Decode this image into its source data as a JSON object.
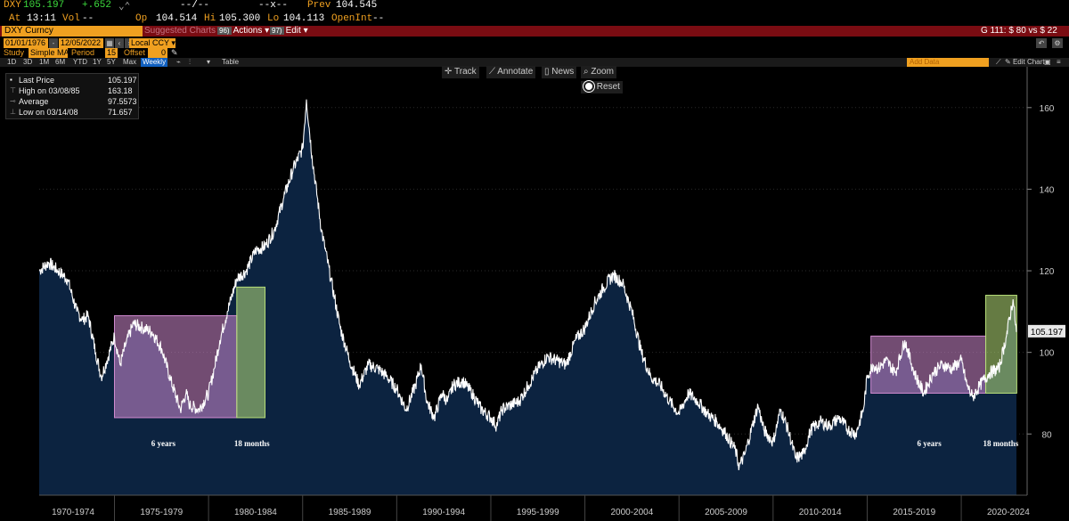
{
  "quote": {
    "ticker": "DXY",
    "last": "105.197",
    "change": "+.652",
    "bid_ask": "--/--",
    "size": "--x--",
    "prev_label": "Prev",
    "prev": "104.545",
    "time_label": "At",
    "time": "13:11",
    "vol_label": "Vol",
    "vol": "--",
    "open_label": "Op",
    "open": "104.514",
    "hi_label": "Hi",
    "hi": "105.300",
    "lo_label": "Lo",
    "lo": "104.113",
    "openint_label": "OpenInt",
    "openint": "--"
  },
  "toolbar": {
    "security": "DXY Curncy",
    "suggested": "Suggested Charts",
    "actions_num": "96)",
    "actions": "Actions",
    "edit_num": "97)",
    "edit": "Edit",
    "gtext": "G 111: $ 80 vs $ 22"
  },
  "dates": {
    "start": "01/01/1976",
    "end": "12/05/2022",
    "ccy": "Local CCY"
  },
  "study": {
    "study_label": "Study",
    "study_value": "Simple MA",
    "period_label": "Period",
    "period_value": "15",
    "offset_label": "Offset",
    "offset_value": "0"
  },
  "periods": [
    "1D",
    "3D",
    "1M",
    "6M",
    "YTD",
    "1Y",
    "5Y",
    "Max"
  ],
  "frequency": "Weekly",
  "table_label": "Table",
  "add_data": "Add Data",
  "edit_chart": "Edit Chart",
  "chart_tools": {
    "track": "Track",
    "annotate": "Annotate",
    "news": "News",
    "zoom": "Zoom",
    "reset": "Reset"
  },
  "legend": [
    {
      "name": "Last Price",
      "value": "105.197",
      "icon": "square-icon"
    },
    {
      "name": "High on 03/08/85",
      "value": "163.18",
      "icon": "high-marker-icon"
    },
    {
      "name": "Average",
      "value": "97.5573",
      "icon": "average-line-icon"
    },
    {
      "name": "Low on 03/14/08",
      "value": "71.657",
      "icon": "low-marker-icon"
    }
  ],
  "chart_data": {
    "type": "area",
    "title": "DXY Curncy",
    "series": [
      {
        "name": "Last Price",
        "color": "#ffffff",
        "fill": "#0c2340"
      }
    ],
    "x": [
      1971.0,
      1971.5,
      1972.0,
      1972.5,
      1973.0,
      1973.3,
      1973.6,
      1974.0,
      1974.3,
      1974.6,
      1975.0,
      1975.3,
      1975.6,
      1976.0,
      1976.5,
      1977.0,
      1977.5,
      1978.0,
      1978.5,
      1978.8,
      1979.0,
      1979.5,
      1980.0,
      1980.3,
      1980.6,
      1981.0,
      1981.5,
      1982.0,
      1982.5,
      1983.0,
      1983.5,
      1984.0,
      1984.5,
      1985.0,
      1985.2,
      1985.5,
      1986.0,
      1986.5,
      1987.0,
      1987.5,
      1988.0,
      1988.5,
      1989.0,
      1989.5,
      1990.0,
      1990.5,
      1991.0,
      1991.3,
      1991.6,
      1992.0,
      1992.4,
      1992.7,
      1993.0,
      1993.5,
      1994.0,
      1994.5,
      1995.0,
      1995.3,
      1995.6,
      1996.0,
      1996.5,
      1997.0,
      1997.5,
      1998.0,
      1998.5,
      1999.0,
      1999.5,
      2000.0,
      2000.5,
      2001.0,
      2001.5,
      2002.0,
      2002.5,
      2003.0,
      2003.5,
      2004.0,
      2004.5,
      2005.0,
      2005.5,
      2006.0,
      2006.5,
      2007.0,
      2007.5,
      2008.0,
      2008.2,
      2008.5,
      2008.9,
      2009.2,
      2009.5,
      2010.0,
      2010.4,
      2010.8,
      2011.2,
      2011.6,
      2012.0,
      2012.5,
      2013.0,
      2013.5,
      2014.0,
      2014.4,
      2014.8,
      2015.0,
      2015.3,
      2015.6,
      2016.0,
      2016.5,
      2017.0,
      2017.5,
      2018.0,
      2018.5,
      2019.0,
      2019.5,
      2020.0,
      2020.3,
      2020.6,
      2021.0,
      2021.5,
      2022.0,
      2022.4,
      2022.75,
      2022.93
    ],
    "values": [
      120,
      122,
      120,
      118,
      110,
      108,
      109,
      100,
      94,
      98,
      104,
      97,
      102,
      107,
      106,
      105,
      101,
      93,
      86,
      90,
      87,
      86,
      90,
      96,
      103,
      110,
      118,
      120,
      125,
      126,
      130,
      138,
      145,
      150,
      162,
      148,
      130,
      118,
      106,
      98,
      92,
      97,
      96,
      94,
      91,
      86,
      92,
      97,
      88,
      84,
      90,
      88,
      92,
      93,
      90,
      86,
      84,
      82,
      86,
      87,
      88,
      92,
      96,
      99,
      98,
      97,
      103,
      106,
      112,
      116,
      119,
      117,
      110,
      100,
      94,
      92,
      88,
      85,
      90,
      88,
      85,
      83,
      80,
      76,
      72,
      75,
      82,
      87,
      81,
      78,
      86,
      81,
      74,
      75,
      81,
      83,
      82,
      84,
      81,
      80,
      86,
      94,
      97,
      96,
      98,
      95,
      103,
      95,
      90,
      95,
      97,
      96,
      98,
      92,
      89,
      92,
      95,
      96,
      104,
      113,
      105
    ],
    "ylim": [
      65,
      170
    ],
    "yticks": [
      80,
      100,
      120,
      140,
      160
    ],
    "xlim": [
      1971.0,
      2023.5
    ],
    "xtick_labels": [
      "1970-1974",
      "1975-1979",
      "1980-1984",
      "1985-1989",
      "1990-1994",
      "1995-1999",
      "2000-2004",
      "2005-2009",
      "2010-2014",
      "2015-2019",
      "2020-2024"
    ],
    "xtick_centers": [
      1972.8,
      1977.5,
      1982.5,
      1987.5,
      1992.5,
      1997.5,
      2002.5,
      2007.5,
      2012.5,
      2017.5,
      2022.5
    ],
    "xtick_dividers": [
      1975.0,
      1980.0,
      1985.0,
      1990.0,
      1995.0,
      2000.0,
      2005.0,
      2010.0,
      2015.0,
      2020.0
    ],
    "last_label": "105.197",
    "annotations": [
      {
        "name": "range-box-1970s",
        "type": "box",
        "x0": 1975.0,
        "x1": 1981.5,
        "y0": 84,
        "y1": 109,
        "color": "#d08ad0",
        "label": "6 years",
        "label_x": 1977.6,
        "label_y": 77
      },
      {
        "name": "breakout-box-1980s",
        "type": "box",
        "x0": 1981.5,
        "x1": 1983.0,
        "y0": 84,
        "y1": 116,
        "color": "#b8e07a",
        "label": "18 months",
        "label_x": 1982.3,
        "label_y": 77
      },
      {
        "name": "range-box-2010s",
        "type": "box",
        "x0": 2015.2,
        "x1": 2021.3,
        "y0": 90,
        "y1": 104,
        "color": "#d08ad0",
        "label": "6 years",
        "label_x": 2018.3,
        "label_y": 77
      },
      {
        "name": "breakout-box-2020s",
        "type": "box",
        "x0": 2021.3,
        "x1": 2022.95,
        "y0": 90,
        "y1": 114,
        "color": "#b8e07a",
        "label": "18 months",
        "label_x": 2022.1,
        "label_y": 77
      }
    ]
  }
}
